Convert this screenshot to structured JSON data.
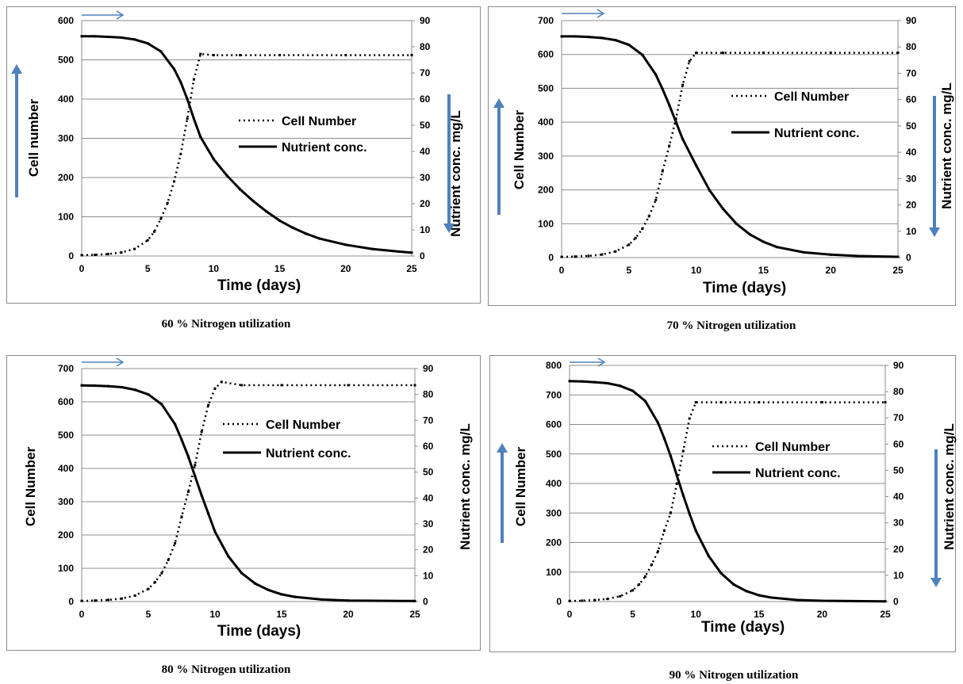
{
  "colors": {
    "arrow": "#4f81bd",
    "grid": "#8c8c8c",
    "line": "#000000"
  },
  "chart_data": [
    {
      "type": "line",
      "caption": "60 % Nitrogen utilization",
      "xlabel": "Time (days)",
      "ylabel_left": "Cell number",
      "ylabel_right": "Nutrient conc. mg/L",
      "xlim": [
        0,
        25
      ],
      "x_ticks": [
        0,
        5,
        10,
        15,
        20,
        25
      ],
      "ylim_left": [
        0,
        600
      ],
      "y_ticks_left": [
        0,
        100,
        200,
        300,
        400,
        500,
        600
      ],
      "ylim_right": [
        0,
        90
      ],
      "y_ticks_right": [
        0,
        10,
        20,
        30,
        40,
        50,
        60,
        70,
        80,
        90
      ],
      "legend": [
        "Cell Number",
        "Nutrient conc."
      ],
      "series": [
        {
          "name": "Cell Number",
          "axis": "left",
          "style": "dotted",
          "x": [
            0,
            1,
            2,
            3,
            4,
            5,
            5.5,
            6,
            6.5,
            7,
            7.5,
            8,
            8.5,
            9,
            10,
            12,
            15,
            20,
            25
          ],
          "y": [
            2,
            3,
            5,
            9,
            18,
            40,
            62,
            95,
            135,
            190,
            260,
            350,
            450,
            515,
            512,
            512,
            512,
            512,
            512
          ]
        },
        {
          "name": "Nutrient conc.",
          "axis": "right",
          "style": "solid",
          "x": [
            0,
            1,
            2,
            3,
            4,
            5,
            6,
            7,
            7.5,
            8,
            8.5,
            9,
            10,
            11,
            12,
            13,
            14,
            15,
            16,
            17,
            18,
            20,
            22,
            24,
            25
          ],
          "y": [
            84,
            84,
            83.8,
            83.5,
            82.8,
            81.3,
            78.2,
            71.5,
            66.5,
            60,
            52.5,
            45.5,
            37,
            30.8,
            25.5,
            21,
            17,
            13.5,
            10.8,
            8.5,
            6.7,
            4.3,
            2.7,
            1.7,
            1.3
          ]
        }
      ]
    },
    {
      "type": "line",
      "caption": "70 % Nitrogen utilization",
      "xlabel": "Time (days)",
      "ylabel_left": "Cell Number",
      "ylabel_right": "Nutrient conc. mg/L",
      "xlim": [
        0,
        25
      ],
      "x_ticks": [
        0,
        5,
        10,
        15,
        20,
        25
      ],
      "ylim_left": [
        0,
        700
      ],
      "y_ticks_left": [
        0,
        100,
        200,
        300,
        400,
        500,
        600,
        700
      ],
      "ylim_right": [
        0,
        90
      ],
      "y_ticks_right": [
        0,
        10,
        20,
        30,
        40,
        50,
        60,
        70,
        80,
        90
      ],
      "legend": [
        "Cell Number",
        "Nutrient conc."
      ],
      "series": [
        {
          "name": "Cell Number",
          "axis": "left",
          "style": "dotted",
          "x": [
            0,
            1,
            2,
            3,
            4,
            5,
            5.5,
            6,
            6.5,
            7,
            7.5,
            8,
            8.5,
            9,
            9.5,
            10,
            12,
            15,
            20,
            25
          ],
          "y": [
            2,
            3,
            5,
            9,
            18,
            38,
            58,
            85,
            122,
            170,
            255,
            330,
            410,
            510,
            580,
            605,
            605,
            605,
            605,
            605
          ]
        },
        {
          "name": "Nutrient conc.",
          "axis": "right",
          "style": "solid",
          "x": [
            0,
            1,
            2,
            3,
            4,
            5,
            6,
            7,
            7.5,
            8,
            8.5,
            9,
            10,
            11,
            12,
            13,
            14,
            15,
            16,
            18,
            20,
            22,
            25
          ],
          "y": [
            84,
            84,
            83.8,
            83.4,
            82.6,
            80.8,
            77,
            69.5,
            64,
            58,
            51.5,
            45,
            35,
            25.5,
            18.5,
            12.8,
            8.8,
            6,
            4,
            2,
            1.1,
            0.6,
            0.3
          ]
        }
      ]
    },
    {
      "type": "line",
      "caption": "80 % Nitrogen utilization",
      "xlabel": "Time (days)",
      "ylabel_left": "Cell Number",
      "ylabel_right": "Nutrient conc. mg/L",
      "xlim": [
        0,
        25
      ],
      "x_ticks": [
        0,
        5,
        10,
        15,
        20,
        25
      ],
      "ylim_left": [
        0,
        700
      ],
      "y_ticks_left": [
        0,
        100,
        200,
        300,
        400,
        500,
        600,
        700
      ],
      "ylim_right": [
        0,
        90
      ],
      "y_ticks_right": [
        0,
        10,
        20,
        30,
        40,
        50,
        60,
        70,
        80,
        90
      ],
      "legend": [
        "Cell Number",
        "Nutrient conc."
      ],
      "series": [
        {
          "name": "Cell Number",
          "axis": "left",
          "style": "dotted",
          "x": [
            0,
            1,
            2,
            3,
            4,
            5,
            5.5,
            6,
            6.5,
            7,
            7.5,
            8,
            8.5,
            9,
            9.5,
            10,
            10.5,
            12,
            15,
            20,
            25
          ],
          "y": [
            2,
            3,
            5,
            9,
            18,
            38,
            58,
            85,
            125,
            175,
            255,
            330,
            410,
            510,
            590,
            640,
            660,
            650,
            650,
            650,
            650
          ]
        },
        {
          "name": "Nutrient conc.",
          "axis": "right",
          "style": "solid",
          "x": [
            0,
            1,
            2,
            3,
            4,
            5,
            6,
            7,
            7.5,
            8,
            8.5,
            9,
            9.5,
            10,
            11,
            12,
            13,
            14,
            15,
            16,
            18,
            20,
            25
          ],
          "y": [
            83.5,
            83.4,
            83.2,
            82.8,
            81.8,
            80,
            76.2,
            68.5,
            62.5,
            56,
            48.5,
            41,
            34,
            27,
            17.5,
            11,
            7,
            4.5,
            2.8,
            1.8,
            0.8,
            0.4,
            0.2
          ]
        }
      ]
    },
    {
      "type": "line",
      "caption": "90 % Nitrogen utilization",
      "xlabel": "Time (days)",
      "ylabel_left": "Cell Number",
      "ylabel_right": "Nutrient conc. mg/L",
      "xlim": [
        0,
        25
      ],
      "x_ticks": [
        0,
        5,
        10,
        15,
        20,
        25
      ],
      "ylim_left": [
        0,
        800
      ],
      "y_ticks_left": [
        0,
        100,
        200,
        300,
        400,
        500,
        600,
        700,
        800
      ],
      "ylim_right": [
        0,
        90
      ],
      "y_ticks_right": [
        0,
        10,
        20,
        30,
        40,
        50,
        60,
        70,
        80,
        90
      ],
      "legend": [
        "Cell Number",
        "Nutrient conc."
      ],
      "series": [
        {
          "name": "Cell Number",
          "axis": "left",
          "style": "dotted",
          "x": [
            0,
            1,
            2,
            3,
            4,
            5,
            5.5,
            6,
            6.5,
            7,
            7.5,
            8,
            8.5,
            9,
            9.5,
            10,
            12,
            15,
            20,
            25
          ],
          "y": [
            2,
            3,
            5,
            9,
            18,
            38,
            58,
            85,
            125,
            170,
            240,
            300,
            400,
            510,
            620,
            675,
            675,
            675,
            675,
            675
          ]
        },
        {
          "name": "Nutrient conc.",
          "axis": "right",
          "style": "solid",
          "x": [
            0,
            1,
            2,
            3,
            4,
            5,
            6,
            7,
            7.5,
            8,
            8.5,
            9,
            9.5,
            10,
            11,
            12,
            13,
            14,
            15,
            16,
            18,
            20,
            25
          ],
          "y": [
            84,
            83.9,
            83.6,
            83.2,
            82.2,
            80.3,
            76.4,
            68.2,
            62.2,
            55.5,
            48,
            40.5,
            33.5,
            27,
            17.5,
            10.8,
            6.5,
            4,
            2.4,
            1.5,
            0.6,
            0.3,
            0.1
          ]
        }
      ]
    }
  ]
}
